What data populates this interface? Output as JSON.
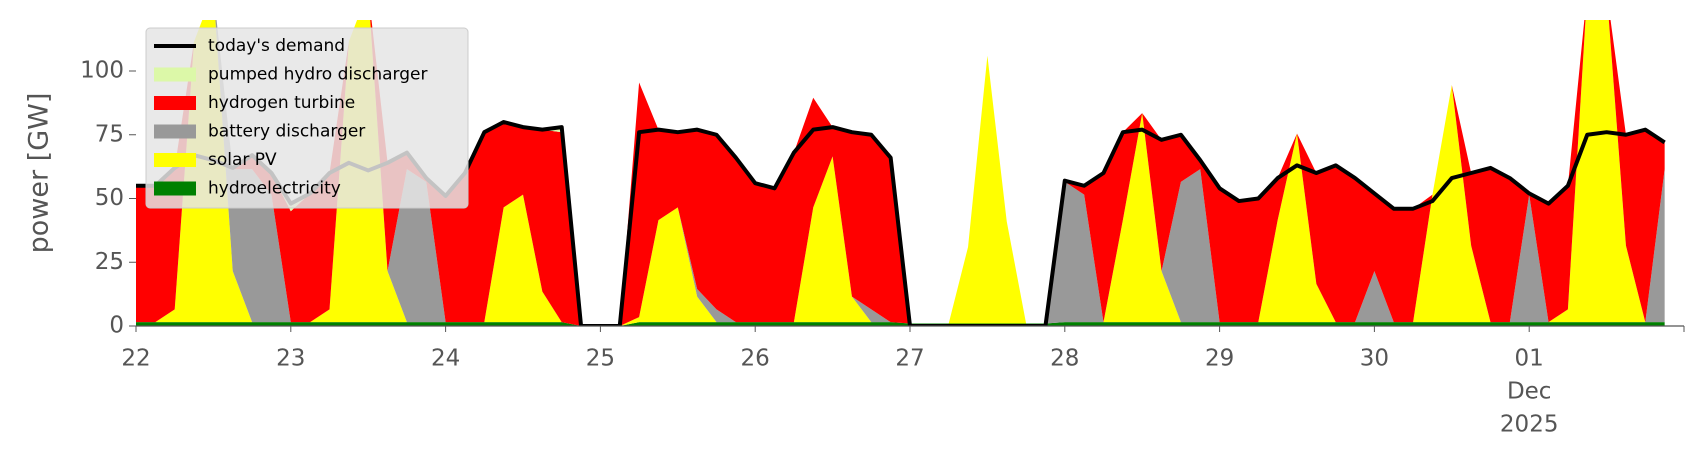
{
  "chart_data": {
    "type": "stacked_area",
    "y_label": "power [GW]",
    "categories": [
      "22",
      null,
      null,
      null,
      null,
      null,
      null,
      null,
      "23",
      null,
      null,
      null,
      null,
      null,
      null,
      null,
      "24",
      null,
      null,
      null,
      null,
      null,
      null,
      null,
      "25",
      null,
      null,
      null,
      null,
      null,
      null,
      null,
      "26",
      null,
      null,
      null,
      null,
      null,
      null,
      null,
      "27",
      null,
      null,
      null,
      null,
      null,
      null,
      null,
      "28",
      null,
      null,
      null,
      null,
      null,
      null,
      null,
      "29",
      null,
      null,
      null,
      null,
      null,
      null,
      null,
      "30",
      null,
      null,
      null,
      null,
      null,
      null,
      null,
      "01",
      null,
      null,
      null,
      null,
      null,
      null,
      null
    ],
    "x_period_label": [
      "Dec",
      "2025"
    ],
    "ylim": [
      0,
      120
    ],
    "yticks": [
      0,
      25,
      50,
      75,
      100
    ],
    "legend": "upper left",
    "series": [
      {
        "name": "hydroelectricity",
        "color": "#008000",
        "values": [
          1.5,
          1.5,
          1.5,
          1.5,
          1.5,
          1.5,
          1.5,
          1.5,
          1.5,
          1.5,
          1.5,
          1.5,
          1.5,
          1.5,
          1.5,
          1.5,
          1.5,
          1.5,
          1.5,
          1.5,
          1.5,
          1.5,
          1.5,
          0,
          0,
          0,
          1.5,
          1.5,
          1.5,
          1.5,
          1.5,
          1.5,
          1.5,
          1.5,
          1.5,
          1.5,
          1.5,
          1.5,
          1.5,
          1.5,
          1,
          1,
          1,
          1,
          1,
          1,
          1,
          1,
          1.5,
          1.5,
          1.5,
          1.5,
          1.5,
          1.5,
          1.5,
          1.5,
          1.5,
          1.5,
          1.5,
          1.5,
          1.5,
          1.5,
          1.5,
          1.5,
          1.5,
          1.5,
          1.5,
          1.5,
          1.5,
          1.5,
          1.5,
          1.5,
          1.5,
          1.5,
          1.5,
          1.5,
          1.5,
          1.5,
          1.5,
          1.5
        ]
      },
      {
        "name": "solar PV",
        "color": "#ffff00",
        "values": [
          0,
          0,
          5,
          110,
          130,
          20,
          0,
          0,
          0,
          0,
          5,
          110,
          130,
          20,
          0,
          0,
          0,
          0,
          0,
          45,
          50,
          12,
          0,
          0,
          0,
          0,
          2,
          40,
          45,
          10,
          0,
          0,
          0,
          0,
          0,
          45,
          65,
          10,
          0,
          0,
          0,
          0,
          0,
          30,
          105,
          40,
          0,
          0,
          0,
          0,
          0,
          40,
          82,
          20,
          0,
          0,
          0,
          0,
          0,
          40,
          74,
          15,
          0,
          0,
          0,
          0,
          0,
          50,
          93,
          30,
          0,
          0,
          0,
          0,
          5,
          130,
          130,
          30,
          0,
          0
        ]
      },
      {
        "name": "battery discharger",
        "color": "#999999",
        "values": [
          0,
          0,
          0,
          0,
          0,
          40,
          60,
          50,
          0,
          0,
          0,
          0,
          0,
          0,
          60,
          55,
          0,
          0,
          0,
          0,
          0,
          0,
          0,
          0,
          0,
          0,
          0,
          0,
          0,
          3,
          5,
          0,
          0,
          0,
          0,
          0,
          0,
          0,
          5,
          0,
          0,
          0,
          0,
          0,
          0,
          0,
          0,
          0,
          55,
          50,
          0,
          0,
          0,
          0,
          55,
          60,
          0,
          0,
          0,
          0,
          0,
          0,
          0,
          0,
          20,
          0,
          0,
          0,
          0,
          0,
          0,
          0,
          50,
          0,
          0,
          0,
          0,
          0,
          0,
          60
        ]
      },
      {
        "name": "hydrogen turbine",
        "color": "#ff0000",
        "values": [
          53.5,
          53.5,
          55.5,
          0,
          0,
          0,
          5.5,
          8.5,
          43.5,
          50.5,
          53.5,
          0,
          0,
          42.5,
          6.5,
          1.5,
          49.5,
          58.5,
          74.5,
          33.5,
          26.5,
          63.5,
          74.5,
          0,
          0,
          0,
          92,
          35.5,
          29.5,
          62.5,
          68.5,
          64.5,
          54.5,
          52.5,
          66.5,
          43,
          11.5,
          64.5,
          68.5,
          64.5,
          0,
          0,
          0,
          0,
          0,
          0,
          0,
          0,
          0.5,
          3.5,
          58.5,
          34.5,
          0,
          51.5,
          18.5,
          3.5,
          52.5,
          47.5,
          48.5,
          16.5,
          0,
          43.5,
          61.5,
          56.5,
          30.5,
          44.5,
          44.5,
          0,
          0,
          28.5,
          60.5,
          56.5,
          0.5,
          46.5,
          48.5,
          0,
          0,
          43.5,
          75.5,
          10.5
        ]
      },
      {
        "name": "pumped hydro discharger",
        "color": "#dcf8a8",
        "values": [
          0,
          0,
          0,
          0,
          0,
          0,
          0,
          0,
          3,
          0,
          0,
          0,
          0,
          0,
          0,
          0,
          0,
          0,
          0,
          0,
          0,
          0,
          2,
          0,
          0,
          0,
          0,
          0,
          0,
          0,
          0,
          0,
          0,
          0,
          0,
          0,
          0,
          0,
          0,
          0,
          0,
          0,
          0,
          0,
          0,
          0,
          0,
          0,
          0,
          0,
          0,
          0,
          0,
          0,
          0,
          0,
          0,
          0,
          0,
          0,
          0,
          0,
          0,
          0,
          0,
          0,
          0,
          0,
          0,
          0,
          0,
          0,
          0,
          0,
          0,
          0,
          0,
          0,
          0,
          0
        ]
      }
    ],
    "line_series": {
      "name": "today's demand",
      "color": "#000000",
      "values": [
        55,
        55,
        62,
        67,
        65,
        62,
        67,
        60,
        48,
        52,
        60,
        64,
        61,
        64,
        68,
        58,
        51,
        60,
        76,
        80,
        78,
        77,
        78,
        0,
        0,
        0,
        76,
        77,
        76,
        77,
        75,
        66,
        56,
        54,
        68,
        77,
        78,
        76,
        75,
        66,
        0,
        0,
        0,
        0,
        0,
        0,
        0,
        0,
        57,
        55,
        60,
        76,
        77,
        73,
        75,
        65,
        54,
        49,
        50,
        58,
        63,
        60,
        63,
        58,
        52,
        46,
        46,
        49,
        58,
        60,
        62,
        58,
        52,
        48,
        55,
        75,
        76,
        75,
        77,
        72
      ]
    }
  }
}
